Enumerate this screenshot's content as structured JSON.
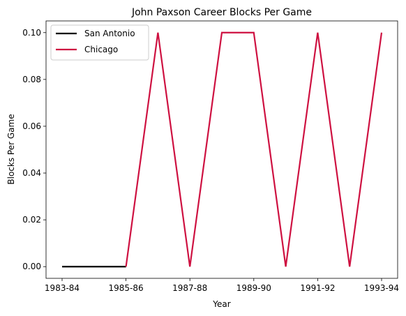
{
  "chart_data": {
    "type": "line",
    "title": "John Paxson Career Blocks Per Game",
    "xlabel": "Year",
    "ylabel": "Blocks Per Game",
    "x": [
      "1983-84",
      "1984-85",
      "1985-86",
      "1986-87",
      "1987-88",
      "1988-89",
      "1989-90",
      "1990-91",
      "1991-92",
      "1992-93",
      "1993-94"
    ],
    "x_tick_labels": [
      "1983-84",
      "1985-86",
      "1987-88",
      "1989-90",
      "1991-92",
      "1993-94"
    ],
    "ylim": [
      -0.005,
      0.105
    ],
    "y_ticks": [
      0.0,
      0.02,
      0.04,
      0.06,
      0.08,
      0.1
    ],
    "y_tick_labels": [
      "0.00",
      "0.02",
      "0.04",
      "0.06",
      "0.08",
      "0.10"
    ],
    "grid": false,
    "legend_position": "top-left",
    "series": [
      {
        "name": "San Antonio",
        "color": "#000000",
        "x": [
          "1983-84",
          "1984-85",
          "1985-86"
        ],
        "values": [
          0.0,
          0.0,
          0.0
        ]
      },
      {
        "name": "Chicago",
        "color": "#ce1141",
        "x": [
          "1985-86",
          "1986-87",
          "1987-88",
          "1988-89",
          "1989-90",
          "1990-91",
          "1991-92",
          "1992-93",
          "1993-94"
        ],
        "values": [
          0.0,
          0.1,
          0.0,
          0.1,
          0.1,
          0.0,
          0.1,
          0.0,
          0.1
        ]
      }
    ]
  }
}
